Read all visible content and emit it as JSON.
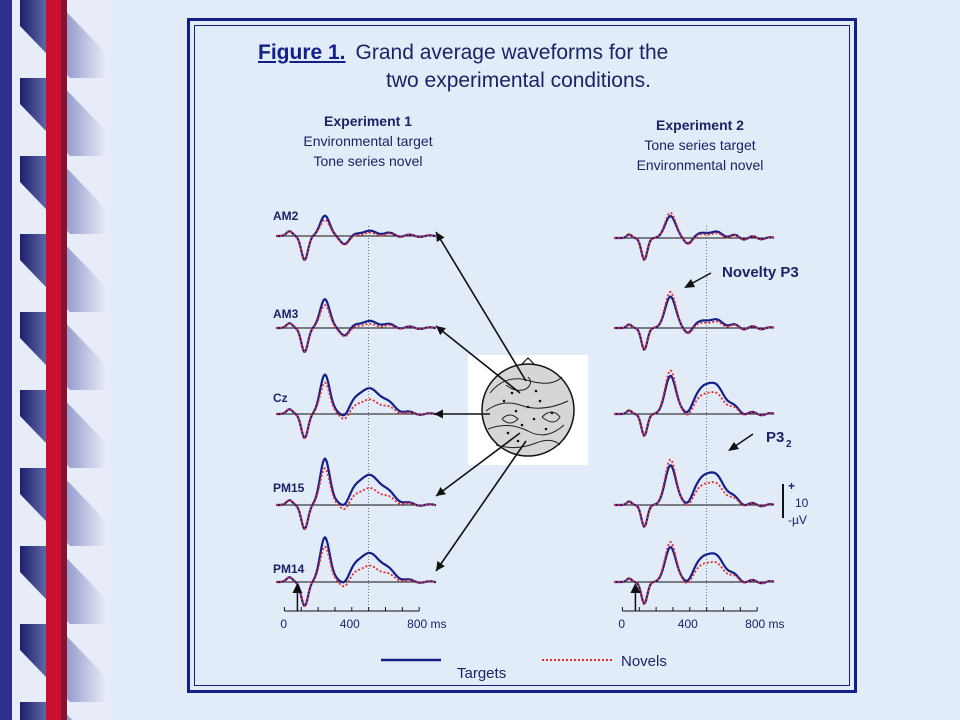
{
  "figure": {
    "label": "Figure 1.",
    "title_line_1": "Grand average waveforms for  the",
    "title_line_2": "two experimental conditions."
  },
  "experiments": [
    {
      "title": "Experiment 1",
      "line1": "Environmental target",
      "line2": "Tone series novel"
    },
    {
      "title": "Experiment 2",
      "line1": "Tone series target",
      "line2": "Environmental novel"
    }
  ],
  "channels": [
    "AM2",
    "AM3",
    "Cz",
    "PM15",
    "PM14"
  ],
  "time_axis": {
    "ticks": [
      "0",
      "400",
      "800 ms"
    ]
  },
  "annotations": {
    "novelty_p3": "Novelty P3",
    "p3_main": "P3",
    "p3_sub": "2"
  },
  "scale_bar": {
    "plus": "+",
    "value": "10",
    "unit": "-µV"
  },
  "legend": {
    "targets": "Targets",
    "novels": "Novels"
  },
  "colors": {
    "targets": "#12208a",
    "novels": "#e8292b",
    "frame": "#12208a",
    "stripe_dark": "#2d2f8a",
    "stripe_red": "#c8102e"
  },
  "icons": {
    "head_map": "scalp-topography-map"
  }
}
